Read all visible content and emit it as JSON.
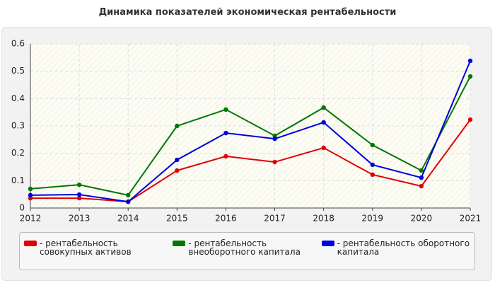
{
  "chart_data": {
    "type": "line",
    "title": "Динамика показателей экономическая рентабельности",
    "categories": [
      "2012",
      "2013",
      "2014",
      "2015",
      "2016",
      "2017",
      "2018",
      "2019",
      "2020",
      "2021"
    ],
    "series": [
      {
        "name": "- рентабельность совокупных активов",
        "color": "#e00000",
        "values": [
          0.036,
          0.036,
          0.023,
          0.137,
          0.189,
          0.168,
          0.22,
          0.122,
          0.08,
          0.323
        ]
      },
      {
        "name": "- рентабельность внеоборотного капитала",
        "color": "#007800",
        "values": [
          0.07,
          0.085,
          0.047,
          0.3,
          0.36,
          0.264,
          0.367,
          0.23,
          0.137,
          0.481
        ]
      },
      {
        "name": "- рентабельность оборотного капитала",
        "color": "#0000e0",
        "values": [
          0.047,
          0.049,
          0.023,
          0.176,
          0.274,
          0.253,
          0.313,
          0.158,
          0.111,
          0.538
        ]
      }
    ],
    "ylim": [
      0,
      0.6
    ],
    "yticks": [
      0,
      0.1,
      0.2,
      0.3,
      0.4,
      0.5,
      0.6
    ],
    "grid": true
  }
}
